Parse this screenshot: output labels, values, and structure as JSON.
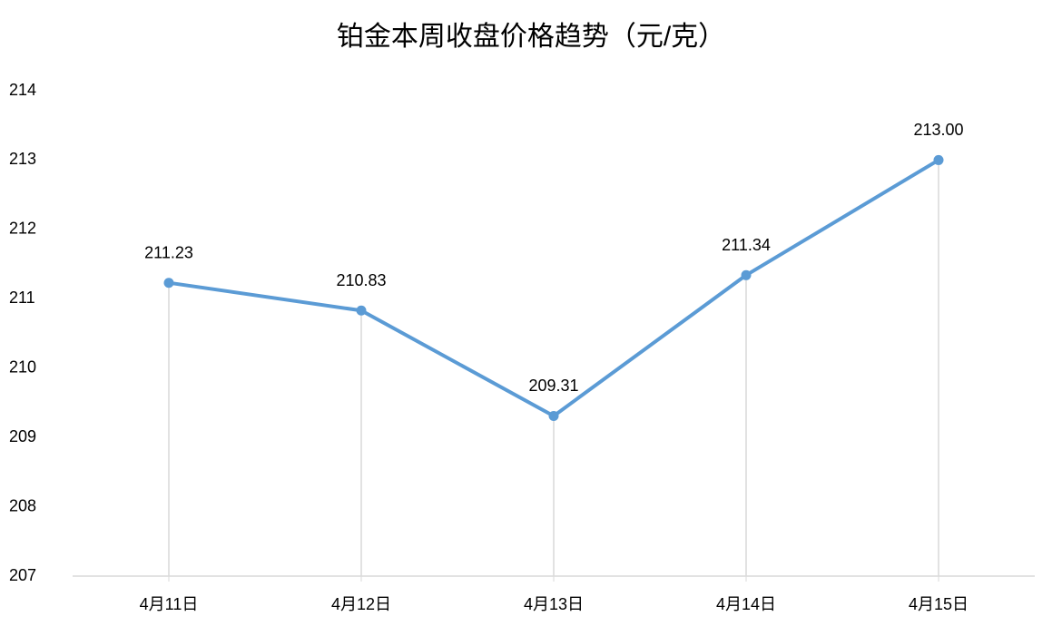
{
  "chart_data": {
    "type": "line",
    "title": "铂金本周收盘价格趋势（元/克）",
    "categories": [
      "4月11日",
      "4月12日",
      "4月13日",
      "4月14日",
      "4月15日"
    ],
    "series": [
      {
        "color": "#5b9bd5",
        "values": [
          211.23,
          210.83,
          209.31,
          211.34,
          213
        ],
        "value_labels": [
          "211.23",
          "210.83",
          "209.31",
          "211.34",
          "213.00"
        ]
      }
    ],
    "ylim": [
      207,
      214
    ],
    "yticks": [
      207,
      208,
      209,
      210,
      211,
      212,
      213,
      214
    ],
    "drop_lines": true,
    "grid": false
  }
}
